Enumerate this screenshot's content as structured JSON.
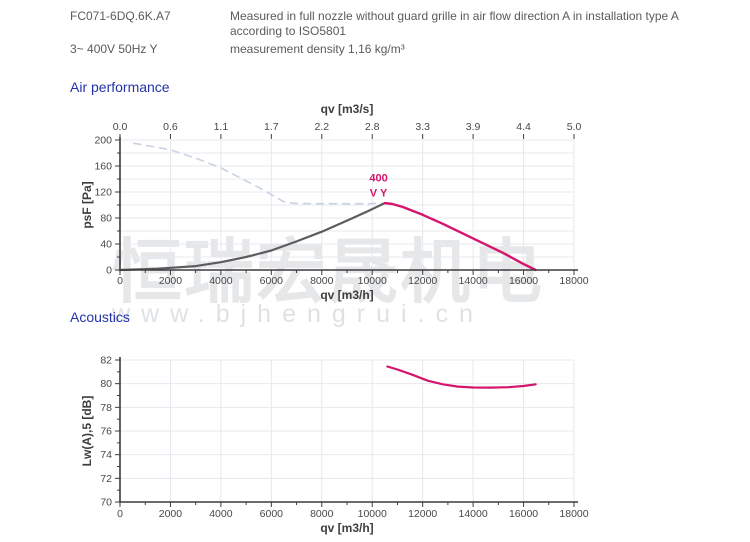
{
  "header": {
    "model": "FC071-6DQ.6K.A7",
    "voltage": "3~ 400V 50Hz Y",
    "measurement_note": "Measured in full nozzle without guard grille in air flow direction A in installation type A according to ISO5801",
    "density_note": "measurement density 1,16 kg/m³"
  },
  "sections": {
    "air_performance": "Air performance",
    "acoustics": "Acoustics"
  },
  "watermark": {
    "cjk": "恒瑞宏晟机电",
    "url": "www.bjhengrui.cn"
  },
  "colors": {
    "title_blue": "#2433aa",
    "curve_pink": "#d4156b",
    "curve_gray": "#5d5d5f",
    "curve_dashed_blue": "#c9d3e3",
    "grid": "#e5e8ee",
    "axis": "#3c3c3e",
    "tick_text": "#48484a",
    "label_text": "#3e3e40",
    "header_text": "#5b5b5d"
  },
  "chart_data": [
    {
      "id": "air-performance",
      "type": "line",
      "title": "Air performance",
      "xlabel": "qv [m3/h]",
      "xlabel_top": "qv [m3/s]",
      "ylabel": "psF [Pa]",
      "xlim": [
        0,
        18000
      ],
      "ylim": [
        0,
        200
      ],
      "x_ticks": [
        0,
        2000,
        4000,
        6000,
        8000,
        10000,
        12000,
        14000,
        16000,
        18000
      ],
      "x_minor_step": 1000,
      "top_tick_labels": [
        "0.0",
        "0.6",
        "1.1",
        "1.7",
        "2.2",
        "2.8",
        "3.3",
        "3.9",
        "4.4",
        "5.0"
      ],
      "y_ticks": [
        0,
        40,
        80,
        120,
        160,
        200
      ],
      "y_minor_step": 20,
      "y_grid_step": 20,
      "grid": true,
      "series": [
        {
          "name": "pressure-limit-curve",
          "color": "#c9d3e3",
          "dash": true,
          "width": 1.6,
          "points": [
            [
              550,
              195
            ],
            [
              1000,
              192
            ],
            [
              2000,
              185
            ],
            [
              3000,
              172
            ],
            [
              4000,
              157
            ],
            [
              5000,
              137
            ],
            [
              5500,
              127
            ],
            [
              6000,
              116
            ],
            [
              6500,
              105
            ],
            [
              6900,
              102.5
            ],
            [
              7800,
              102
            ],
            [
              8800,
              102
            ],
            [
              9800,
              102
            ],
            [
              10400,
              103
            ]
          ]
        },
        {
          "name": "system-resistance-curve",
          "color": "#5d5d5f",
          "dash": false,
          "width": 2.2,
          "points": [
            [
              0,
              0
            ],
            [
              1500,
              2
            ],
            [
              3000,
              6
            ],
            [
              4000,
              12
            ],
            [
              5000,
              20
            ],
            [
              6000,
              30
            ],
            [
              7000,
              44
            ],
            [
              8000,
              59
            ],
            [
              9000,
              76
            ],
            [
              9800,
              90
            ],
            [
              10500,
              103
            ]
          ]
        },
        {
          "name": "fan-curve-400V",
          "color": "#d4156b",
          "dash": false,
          "width": 2.4,
          "points": [
            [
              10500,
              103
            ],
            [
              10800,
              101.5
            ],
            [
              11200,
              97
            ],
            [
              12000,
              85
            ],
            [
              12800,
              71
            ],
            [
              13600,
              56
            ],
            [
              14400,
              41
            ],
            [
              15200,
              26
            ],
            [
              16000,
              9
            ],
            [
              16480,
              0
            ]
          ]
        }
      ],
      "annotation": {
        "lines": [
          "400",
          "V Y"
        ],
        "x": 10250,
        "y": [
          136,
          113
        ],
        "color": "#d4156b"
      }
    },
    {
      "id": "acoustics",
      "type": "line",
      "title": "Acoustics",
      "xlabel": "qv [m3/h]",
      "ylabel": "Lw(A),5 [dB]",
      "xlim": [
        0,
        18000
      ],
      "ylim": [
        70,
        82
      ],
      "x_ticks": [
        0,
        2000,
        4000,
        6000,
        8000,
        10000,
        12000,
        14000,
        16000,
        18000
      ],
      "x_minor_step": 1000,
      "y_ticks": [
        70,
        72,
        74,
        76,
        78,
        80,
        82
      ],
      "y_minor_step": 1,
      "y_grid_step": 2,
      "grid": true,
      "series": [
        {
          "name": "sound-power-curve",
          "color": "#d4156b",
          "dash": false,
          "width": 2.2,
          "points": [
            [
              10600,
              81.45
            ],
            [
              11000,
              81.2
            ],
            [
              11600,
              80.75
            ],
            [
              12200,
              80.25
            ],
            [
              12800,
              79.95
            ],
            [
              13400,
              79.75
            ],
            [
              14000,
              79.68
            ],
            [
              14700,
              79.67
            ],
            [
              15400,
              79.7
            ],
            [
              16000,
              79.8
            ],
            [
              16480,
              79.95
            ]
          ]
        }
      ]
    }
  ]
}
